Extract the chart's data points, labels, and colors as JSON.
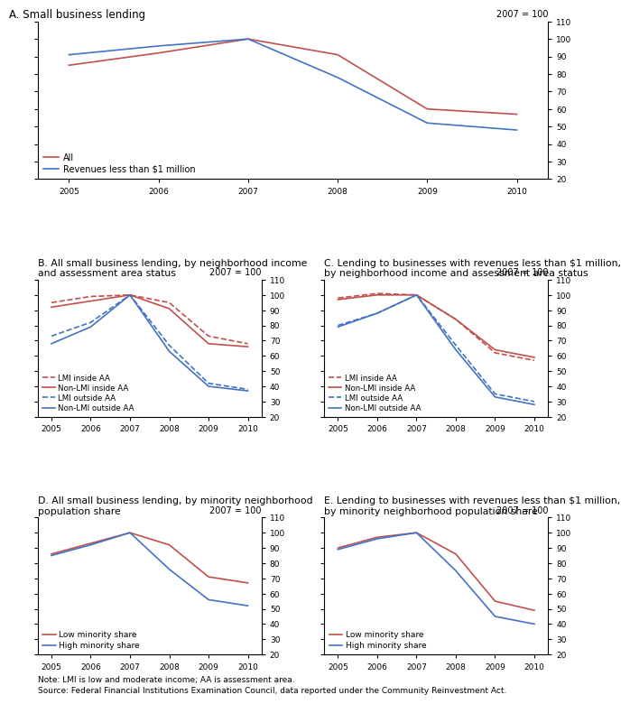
{
  "years": [
    2005,
    2006,
    2007,
    2008,
    2009,
    2010
  ],
  "panel_A": {
    "title": "A. Small business lending",
    "all": [
      85,
      92,
      100,
      91,
      60,
      57
    ],
    "rev_lt1m": [
      91,
      96,
      100,
      78,
      52,
      48
    ],
    "legend": [
      "All",
      "Revenues less than $1 million"
    ],
    "ylim": [
      20,
      110
    ],
    "yticks": [
      20,
      30,
      40,
      50,
      60,
      70,
      80,
      90,
      100,
      110
    ]
  },
  "panel_B": {
    "title": "B. All small business lending, by neighborhood income\nand assessment area status",
    "lmi_inside_aa": [
      95,
      99,
      100,
      95,
      73,
      68
    ],
    "nonlmi_inside_aa": [
      92,
      96,
      100,
      91,
      68,
      66
    ],
    "lmi_outside_aa": [
      73,
      82,
      100,
      67,
      42,
      38
    ],
    "nonlmi_outside_aa": [
      68,
      79,
      100,
      63,
      40,
      37
    ],
    "legend": [
      "LMI inside AA",
      "Non-LMI inside AA",
      "LMI outside AA",
      "Non-LMI outside AA"
    ],
    "ylim": [
      20,
      110
    ],
    "yticks": [
      20,
      30,
      40,
      50,
      60,
      70,
      80,
      90,
      100,
      110
    ]
  },
  "panel_C": {
    "title": "C. Lending to businesses with revenues less than $1 million,\nby neighborhood income and assessment area status",
    "lmi_inside_aa": [
      98,
      101,
      100,
      84,
      62,
      57
    ],
    "nonlmi_inside_aa": [
      97,
      100,
      100,
      84,
      64,
      59
    ],
    "lmi_outside_aa": [
      80,
      88,
      100,
      67,
      35,
      30
    ],
    "nonlmi_outside_aa": [
      79,
      88,
      100,
      64,
      33,
      28
    ],
    "legend": [
      "LMI inside AA",
      "Non-LMI inside AA",
      "LMI outside AA",
      "Non-LMI outside AA"
    ],
    "ylim": [
      20,
      110
    ],
    "yticks": [
      20,
      30,
      40,
      50,
      60,
      70,
      80,
      90,
      100,
      110
    ]
  },
  "panel_D": {
    "title": "D. All small business lending, by minority neighborhood\npopulation share",
    "low_minority": [
      86,
      93,
      100,
      92,
      71,
      67
    ],
    "high_minority": [
      85,
      92,
      100,
      76,
      56,
      52
    ],
    "legend": [
      "Low minority share",
      "High minority share"
    ],
    "ylim": [
      20,
      110
    ],
    "yticks": [
      20,
      30,
      40,
      50,
      60,
      70,
      80,
      90,
      100,
      110
    ]
  },
  "panel_E": {
    "title": "E. Lending to businesses with revenues less than $1 million,\nby minority neighborhood population share",
    "low_minority": [
      90,
      97,
      100,
      86,
      55,
      49
    ],
    "high_minority": [
      89,
      96,
      100,
      75,
      45,
      40
    ],
    "legend": [
      "Low minority share",
      "High minority share"
    ],
    "ylim": [
      20,
      110
    ],
    "yticks": [
      20,
      30,
      40,
      50,
      60,
      70,
      80,
      90,
      100,
      110
    ]
  },
  "red_solid": "#c0504d",
  "blue_solid": "#4472c4",
  "note": "Note: LMI is low and moderate income; AA is assessment area.",
  "source": "Source: Federal Financial Institutions Examination Council, data reported under the Community Reinvestment Act."
}
